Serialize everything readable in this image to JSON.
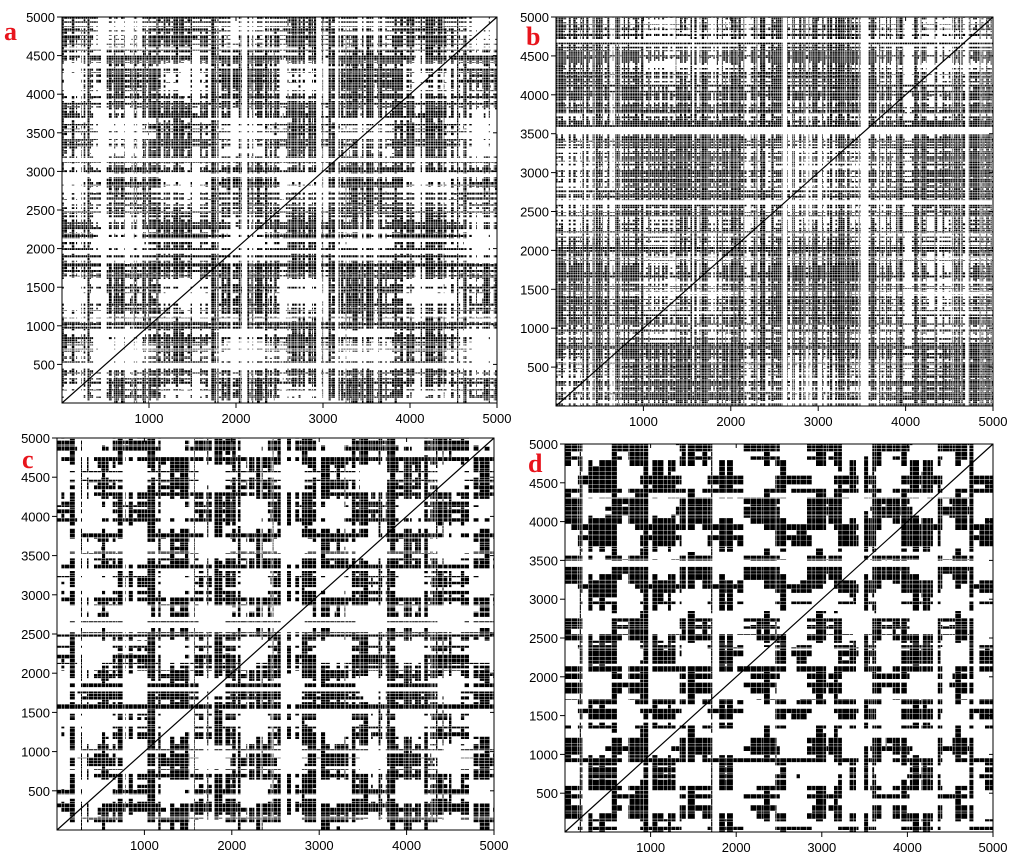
{
  "colors": {
    "mark": "#000000",
    "background": "#ffffff",
    "panel_letter": "#e8141c"
  },
  "chart_data": [
    {
      "type": "heatmap",
      "panel_label": "a",
      "xlim": [
        0,
        5000
      ],
      "ylim": [
        0,
        5000
      ],
      "x_ticks": [
        "1000",
        "2000",
        "3000",
        "4000",
        "5000"
      ],
      "y_ticks": [
        "500",
        "1000",
        "1500",
        "2000",
        "2500",
        "3000",
        "3500",
        "4000",
        "4500",
        "5000"
      ],
      "grid": false,
      "style": {
        "block_scale": 0.6,
        "white_bands": [
          3150,
          2950,
          2100,
          1950,
          500,
          470
        ],
        "blob_period": 1400,
        "blob_strength": 0.35,
        "fill": 0.55
      }
    },
    {
      "type": "heatmap",
      "panel_label": "b",
      "xlim": [
        0,
        5000
      ],
      "ylim": [
        0,
        5000
      ],
      "x_ticks": [
        "1000",
        "2000",
        "3000",
        "4000",
        "5000"
      ],
      "y_ticks": [
        "500",
        "1000",
        "1500",
        "2000",
        "2500",
        "3000",
        "3500",
        "4000",
        "4500",
        "5000"
      ],
      "grid": false,
      "style": {
        "block_scale": 0.5,
        "white_bands": [
          3560,
          3520,
          4700,
          2620
        ],
        "blob_period": 3000,
        "blob_strength": 0.15,
        "fill": 0.58
      }
    },
    {
      "type": "heatmap",
      "panel_label": "c",
      "xlim": [
        0,
        5000
      ],
      "ylim": [
        0,
        5000
      ],
      "x_ticks": [
        "1000",
        "2000",
        "3000",
        "4000",
        "5000"
      ],
      "y_ticks": [
        "500",
        "1000",
        "1500",
        "2000",
        "2500",
        "3000",
        "3500",
        "4000",
        "4500",
        "5000"
      ],
      "grid": false,
      "style": {
        "block_scale": 1.0,
        "white_bands": [
          2620,
          2580,
          2700,
          1800
        ],
        "blob_period": 900,
        "blob_strength": 0.55,
        "fill": 0.5
      }
    },
    {
      "type": "heatmap",
      "panel_label": "d",
      "xlim": [
        0,
        5000
      ],
      "ylim": [
        0,
        5000
      ],
      "x_ticks": [
        "1000",
        "2000",
        "3000",
        "4000",
        "5000"
      ],
      "y_ticks": [
        "500",
        "1000",
        "1500",
        "2000",
        "2500",
        "3000",
        "3500",
        "4000",
        "4500",
        "5000"
      ],
      "grid": false,
      "style": {
        "block_scale": 1.4,
        "white_bands": [
          1450,
          3450
        ],
        "blob_period": 760,
        "blob_strength": 0.7,
        "fill": 0.52
      }
    }
  ]
}
